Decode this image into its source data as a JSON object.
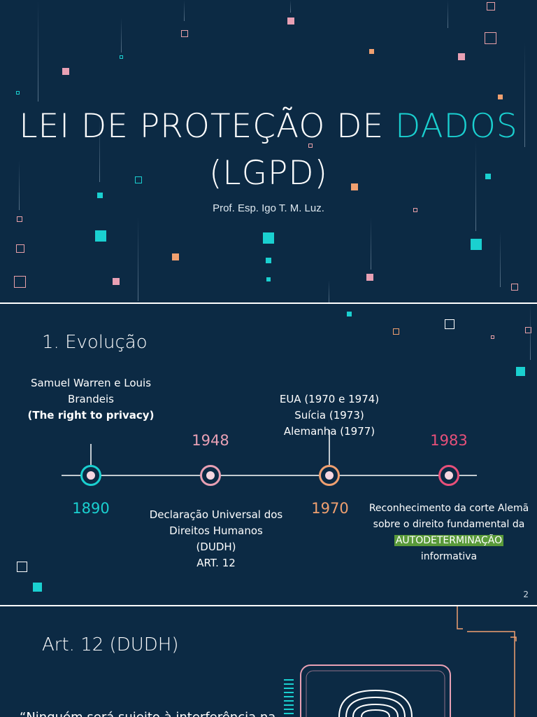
{
  "slide1": {
    "title_line1_main": "LEI DE PROTEÇÃO DE ",
    "title_line1_accent": "DADOS",
    "title_line2": "(LGPD)",
    "subtitle": "Prof. Esp. Igo T. M. Luz."
  },
  "slide2": {
    "heading": "1. Evolução",
    "page_number": "2",
    "events": [
      {
        "year": "1890",
        "year_color": "#1ad0d0",
        "line1": "Samuel Warren e Louis",
        "line2": "Brandeis",
        "line3": "(The right to privacy)"
      },
      {
        "year": "1948",
        "year_color": "#e8a0b4",
        "line1": "Declaração Universal dos",
        "line2": "Direitos Humanos",
        "line3": "(DUDH)",
        "line4": "ART. 12"
      },
      {
        "year": "1970",
        "year_color": "#f0a070",
        "line1": "EUA (1970 e 1974)",
        "line2": "Suícia (1973)",
        "line3": "Alemanha (1977)"
      },
      {
        "year": "1983",
        "year_color": "#e8507a",
        "line1": "Reconhecimento da corte Alemã",
        "line2": "sobre o direito fundamental da",
        "line3_highlight": "AUTODETERMINAÇÃO",
        "line3_rest": " informativa"
      }
    ]
  },
  "slide3": {
    "heading": "Art. 12 (DUDH)",
    "quote_start": "“Ninguém será sujeito à interferência na"
  },
  "colors": {
    "background": "#0c2a44",
    "accent_cyan": "#1ad0d0",
    "pink": "#e8a0b4",
    "orange": "#f0a070",
    "magenta": "#e8507a",
    "highlight": "#5a9a3a"
  },
  "icons": [
    "fingerprint-icon",
    "circuit-icon"
  ]
}
